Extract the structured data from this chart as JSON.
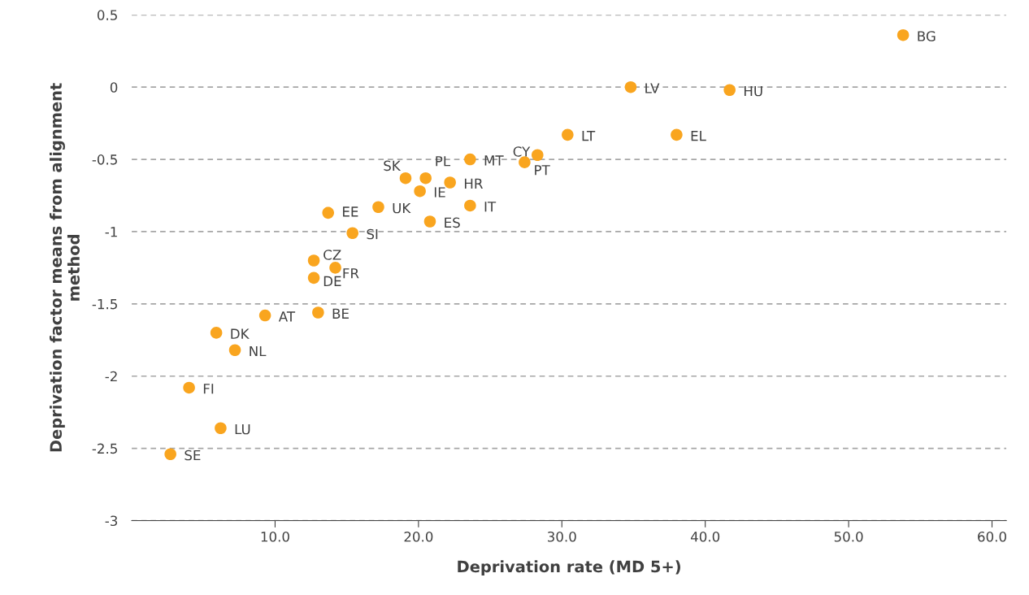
{
  "chart_data": {
    "type": "scatter",
    "xlabel": "Deprivation rate (MD 5+)",
    "ylabel": "Deprivation factor means from alignment\nmethod",
    "x": [
      53.8,
      34.8,
      41.7,
      30.4,
      38.0,
      28.3,
      27.4,
      23.6,
      19.1,
      20.5,
      22.2,
      20.1,
      17.2,
      13.7,
      20.8,
      23.6,
      15.4,
      12.7,
      14.2,
      12.7,
      9.3,
      13.0,
      5.9,
      7.2,
      4.0,
      6.2,
      2.7
    ],
    "series": [
      {
        "color": "#f9a51f",
        "values": [
          0.36,
          0.0,
          -0.02,
          -0.33,
          -0.33,
          -0.47,
          -0.52,
          -0.5,
          -0.63,
          -0.63,
          -0.66,
          -0.72,
          -0.83,
          -0.87,
          -0.93,
          -0.82,
          -1.01,
          -1.2,
          -1.25,
          -1.32,
          -1.58,
          -1.56,
          -1.7,
          -1.82,
          -2.08,
          -2.36,
          -2.54
        ]
      }
    ],
    "annotations": [
      {
        "text": "BG",
        "x": 53.8,
        "y": 0.36
      },
      {
        "text": "LV",
        "x": 34.8,
        "y": 0.0
      },
      {
        "text": "HU",
        "x": 41.7,
        "y": -0.02
      },
      {
        "text": "LT",
        "x": 30.4,
        "y": -0.33
      },
      {
        "text": "EL",
        "x": 38.0,
        "y": -0.33
      },
      {
        "text": "CY",
        "x": 28.3,
        "y": -0.47
      },
      {
        "text": "PT",
        "x": 27.4,
        "y": -0.52
      },
      {
        "text": "MT",
        "x": 23.6,
        "y": -0.5
      },
      {
        "text": "SK",
        "x": 19.1,
        "y": -0.63
      },
      {
        "text": "PL",
        "x": 20.5,
        "y": -0.63
      },
      {
        "text": "HR",
        "x": 22.2,
        "y": -0.66
      },
      {
        "text": "IE",
        "x": 20.1,
        "y": -0.72
      },
      {
        "text": "UK",
        "x": 17.2,
        "y": -0.83
      },
      {
        "text": "EE",
        "x": 13.7,
        "y": -0.87
      },
      {
        "text": "ES",
        "x": 20.8,
        "y": -0.93
      },
      {
        "text": "IT",
        "x": 23.6,
        "y": -0.82
      },
      {
        "text": "SI",
        "x": 15.4,
        "y": -1.01
      },
      {
        "text": "CZ",
        "x": 12.7,
        "y": -1.2
      },
      {
        "text": "FR",
        "x": 14.2,
        "y": -1.25
      },
      {
        "text": "DE",
        "x": 12.7,
        "y": -1.32
      },
      {
        "text": "AT",
        "x": 9.3,
        "y": -1.58
      },
      {
        "text": "BE",
        "x": 13.0,
        "y": -1.56
      },
      {
        "text": "DK",
        "x": 5.9,
        "y": -1.7
      },
      {
        "text": "NL",
        "x": 7.2,
        "y": -1.82
      },
      {
        "text": "FI",
        "x": 4.0,
        "y": -2.08
      },
      {
        "text": "LU",
        "x": 6.2,
        "y": -2.36
      },
      {
        "text": "SE",
        "x": 2.7,
        "y": -2.54
      }
    ],
    "xlim": [
      0,
      61
    ],
    "ylim": [
      -3,
      0.5
    ],
    "xticks": [
      {
        "value": 10,
        "label": "10.0"
      },
      {
        "value": 20,
        "label": "20.0"
      },
      {
        "value": 30,
        "label": "30.0"
      },
      {
        "value": 40,
        "label": "40.0"
      },
      {
        "value": 50,
        "label": "50.0"
      },
      {
        "value": 60,
        "label": "60.0"
      }
    ],
    "yticks": [
      {
        "value": -3,
        "label": "-3"
      },
      {
        "value": -2.5,
        "label": "-2.5"
      },
      {
        "value": -2,
        "label": "-2"
      },
      {
        "value": -1.5,
        "label": "-1.5"
      },
      {
        "value": -1,
        "label": "-1"
      },
      {
        "value": -0.5,
        "label": "-0.5"
      },
      {
        "value": 0,
        "label": "0"
      },
      {
        "value": 0.5,
        "label": "0.5"
      }
    ],
    "grid": "y",
    "marker": "circle"
  }
}
